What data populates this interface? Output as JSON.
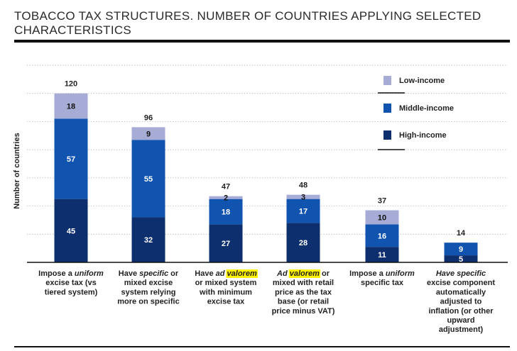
{
  "header": {
    "title": "TOBACCO TAX STRUCTURES. NUMBER OF COUNTRIES APPLYING SELECTED CHARACTERISTICS"
  },
  "colors": {
    "high": "#0d2f6e",
    "middle": "#1054b0",
    "low": "#a7acd6",
    "highlight": "#fff200",
    "grid": "#999999"
  },
  "chart_data": {
    "type": "bar",
    "stacked": true,
    "ylabel": "Number of countries",
    "ylim": [
      0,
      140
    ],
    "grid": true,
    "legend_position": "top-right",
    "categories": [
      {
        "lines": [
          [
            {
              "t": "Impose a "
            },
            {
              "t": "uniform",
              "i": true
            }
          ],
          [
            {
              "t": "excise tax (vs"
            }
          ],
          [
            {
              "t": "tiered system)"
            }
          ]
        ]
      },
      {
        "lines": [
          [
            {
              "t": "Have "
            },
            {
              "t": "specific",
              "i": true
            },
            {
              "t": " or"
            }
          ],
          [
            {
              "t": "mixed excise"
            }
          ],
          [
            {
              "t": "system relying"
            }
          ],
          [
            {
              "t": "more on specific"
            }
          ]
        ]
      },
      {
        "lines": [
          [
            {
              "t": "Have "
            },
            {
              "t": "ad",
              "i": true
            },
            {
              "t": " "
            },
            {
              "t": "valorem",
              "i": true,
              "hl": true
            }
          ],
          [
            {
              "t": "or mixed system"
            }
          ],
          [
            {
              "t": "with minimum"
            }
          ],
          [
            {
              "t": "excise tax"
            }
          ]
        ]
      },
      {
        "lines": [
          [
            {
              "t": "Ad",
              "i": true
            },
            {
              "t": " "
            },
            {
              "t": "valorem",
              "i": true,
              "hl": true
            },
            {
              "t": " or"
            }
          ],
          [
            {
              "t": "mixed with retail"
            }
          ],
          [
            {
              "t": "price as the tax"
            }
          ],
          [
            {
              "t": "base (or retail"
            }
          ],
          [
            {
              "t": "price minus VAT)"
            }
          ]
        ]
      },
      {
        "lines": [
          [
            {
              "t": "Impose a "
            },
            {
              "t": "uniform",
              "i": true
            }
          ],
          [
            {
              "t": "specific tax"
            }
          ]
        ]
      },
      {
        "lines": [
          [
            {
              "t": "Have specific",
              "i": true
            }
          ],
          [
            {
              "t": "excise component"
            }
          ],
          [
            {
              "t": "automatically"
            }
          ],
          [
            {
              "t": "adjusted to"
            }
          ],
          [
            {
              "t": "inflation (or other"
            }
          ],
          [
            {
              "t": "upward"
            }
          ],
          [
            {
              "t": "adjustment)"
            }
          ]
        ]
      }
    ],
    "series": [
      {
        "name": "High-income",
        "key": "high",
        "values": [
          45,
          32,
          27,
          28,
          11,
          5
        ]
      },
      {
        "name": "Middle-income",
        "key": "middle",
        "values": [
          57,
          55,
          18,
          17,
          16,
          9
        ]
      },
      {
        "name": "Low-income",
        "key": "low",
        "values": [
          18,
          9,
          2,
          3,
          10,
          null
        ]
      }
    ],
    "totals": [
      120,
      96,
      47,
      48,
      37,
      14
    ],
    "legend": [
      {
        "name": "Low-income",
        "key": "low"
      },
      {
        "name": "Middle-income",
        "key": "middle"
      },
      {
        "name": "High-income",
        "key": "high"
      }
    ]
  }
}
